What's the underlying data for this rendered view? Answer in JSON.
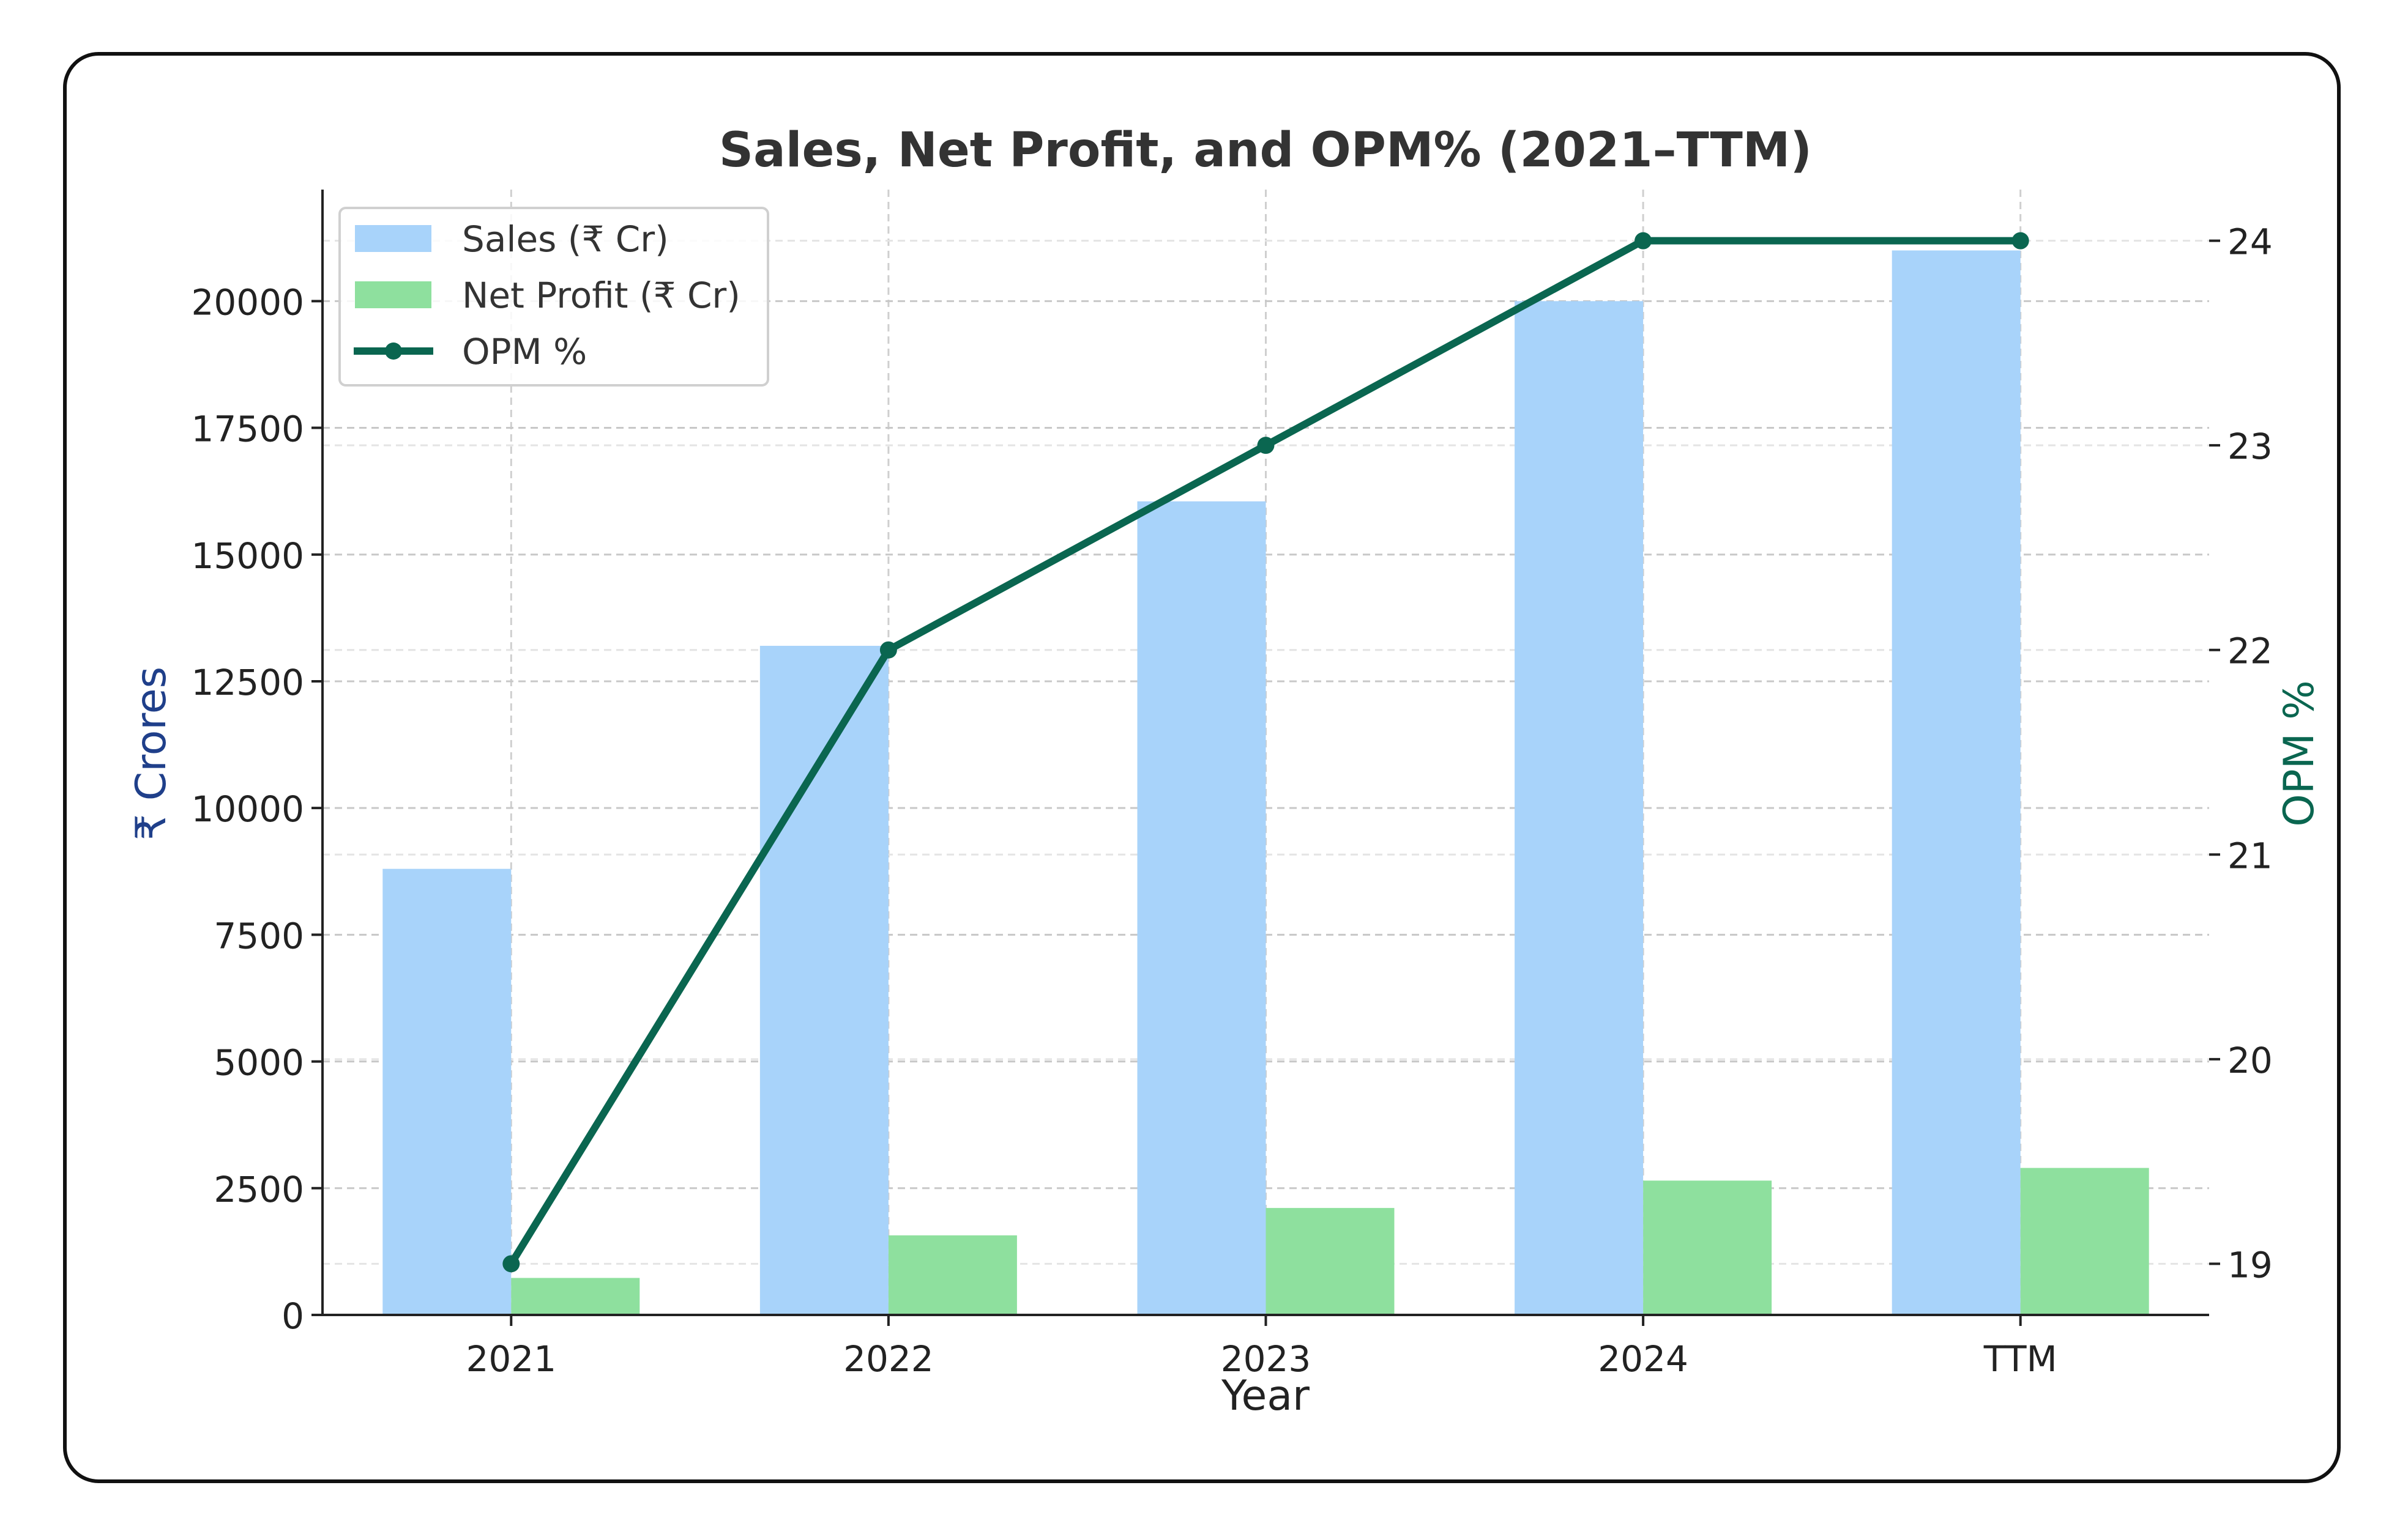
{
  "chart_data": {
    "type": "bar+line",
    "title": "Sales, Net Profit, and OPM% (2021–TTM)",
    "xlabel": "Year",
    "ylabel_left": "₹ Crores",
    "ylabel_right": "OPM %",
    "categories": [
      "2021",
      "2022",
      "2023",
      "2024",
      "TTM"
    ],
    "left_ylim": [
      0,
      22200
    ],
    "left_ticks": [
      0,
      2500,
      5000,
      7500,
      10000,
      12500,
      15000,
      17500,
      20000
    ],
    "right_ylim": [
      18.75,
      24.25
    ],
    "right_ticks": [
      19,
      20,
      21,
      22,
      23,
      24
    ],
    "grid": true,
    "legend_position": "top-left",
    "series": [
      {
        "name": "Sales (₹ Cr)",
        "type": "bar",
        "axis": "left",
        "color": "#a8d3fa",
        "values": [
          8800,
          13200,
          16050,
          20000,
          21000
        ]
      },
      {
        "name": "Net Profit (₹ Cr)",
        "type": "bar",
        "axis": "left",
        "color": "#8ee09e",
        "values": [
          730,
          1570,
          2110,
          2650,
          2900
        ]
      },
      {
        "name": "OPM %",
        "type": "line",
        "axis": "right",
        "color": "#0a6650",
        "values": [
          19,
          22,
          23,
          24,
          24
        ]
      }
    ],
    "axis_colors": {
      "left_label": "#1f3f8a",
      "right_label": "#0a6650"
    }
  }
}
